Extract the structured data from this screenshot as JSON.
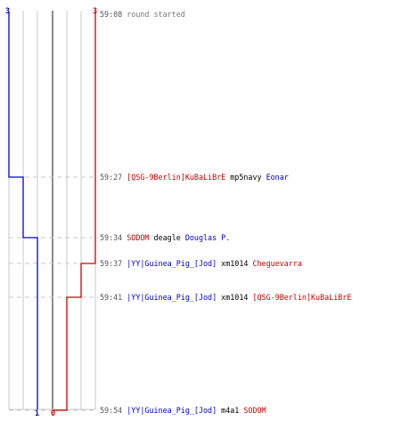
{
  "colors": {
    "team_blue": "#0000cc",
    "team_red": "#cc0000",
    "grid": "#c8c8c8",
    "dashed": "#c8c8c8",
    "time": "#555555",
    "info": "#777777",
    "weapon": "#000000"
  },
  "scores": {
    "blue_start": "3",
    "red_start": "3",
    "blue_end": "1",
    "red_end": "0"
  },
  "events": [
    {
      "time": "59:08",
      "kind": "info",
      "text": "round started"
    },
    {
      "time": "59:27",
      "kind": "kill",
      "killer": "[QSG-9Berlin]KuBaLiBrE",
      "killer_team": "red",
      "weapon": "mp5navy",
      "victim": "Eonar",
      "victim_team": "blue"
    },
    {
      "time": "59:34",
      "kind": "kill",
      "killer": "SODOM",
      "killer_team": "red",
      "weapon": "deagle",
      "victim": "Douglas P.",
      "victim_team": "blue"
    },
    {
      "time": "59:37",
      "kind": "kill",
      "killer": "|YY|Guinea_Pig_[Jod]",
      "killer_team": "blue",
      "weapon": "xm1014",
      "victim": "Cheguevarra",
      "victim_team": "red"
    },
    {
      "time": "59:41",
      "kind": "kill",
      "killer": "|YY|Guinea_Pig_[Jod]",
      "killer_team": "blue",
      "weapon": "xm1014",
      "victim": "[QSG-9Berlin]KuBaLiBrE",
      "victim_team": "red"
    },
    {
      "time": "59:54",
      "kind": "kill",
      "killer": "|YY|Guinea_Pig_[Jod]",
      "killer_team": "blue",
      "weapon": "m4a1",
      "victim": "SODOM",
      "victim_team": "red"
    }
  ]
}
